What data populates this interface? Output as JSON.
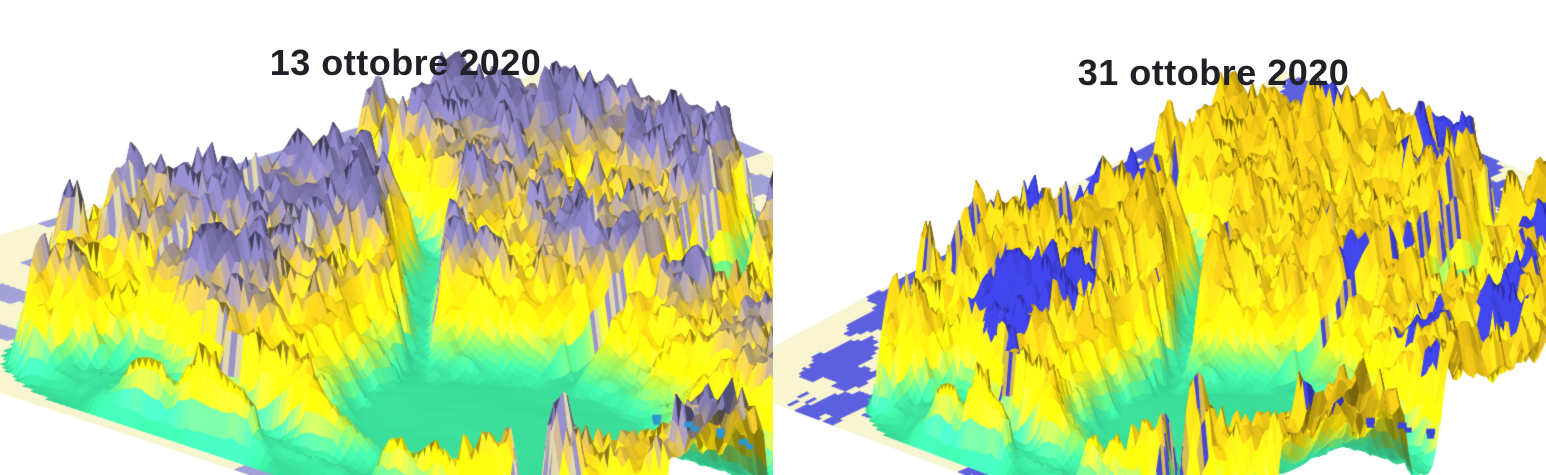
{
  "figure": {
    "background_color": "#ffffff",
    "title_color": "#202126"
  },
  "panels": [
    {
      "title": "13 ottobre 2020",
      "snow_cover_style": "widespread-lavender",
      "palette": {
        "plain": "#f8f5d0",
        "plain_patch": "#a2a2d8",
        "green_low": "#34d492",
        "green": "#40e6a0",
        "yellow": "#ffe70a",
        "gold": "#e6c11a",
        "high": "#7a74a8",
        "high_dark": "#4e4874",
        "snow_patch": "#8a84b8",
        "wall_a": "#9a94c8",
        "wall_b": "#e2d9ac",
        "water": "#2f96cc"
      }
    },
    {
      "title": "31 ottobre 2020",
      "snow_cover_style": "patchy-blue",
      "palette": {
        "plain": "#f8f5d0",
        "plain_patch": "#5d60de",
        "green_low": "#34d492",
        "green": "#40e6a0",
        "yellow": "#ffe70a",
        "gold": "#e2bd18",
        "high": "#d9b314",
        "high_dark": "#b8980e",
        "snow_patch": "#3a3dd0",
        "wall_a": "#4548d2",
        "wall_b": "#d6bb53",
        "water": "#3a46d8"
      }
    }
  ]
}
